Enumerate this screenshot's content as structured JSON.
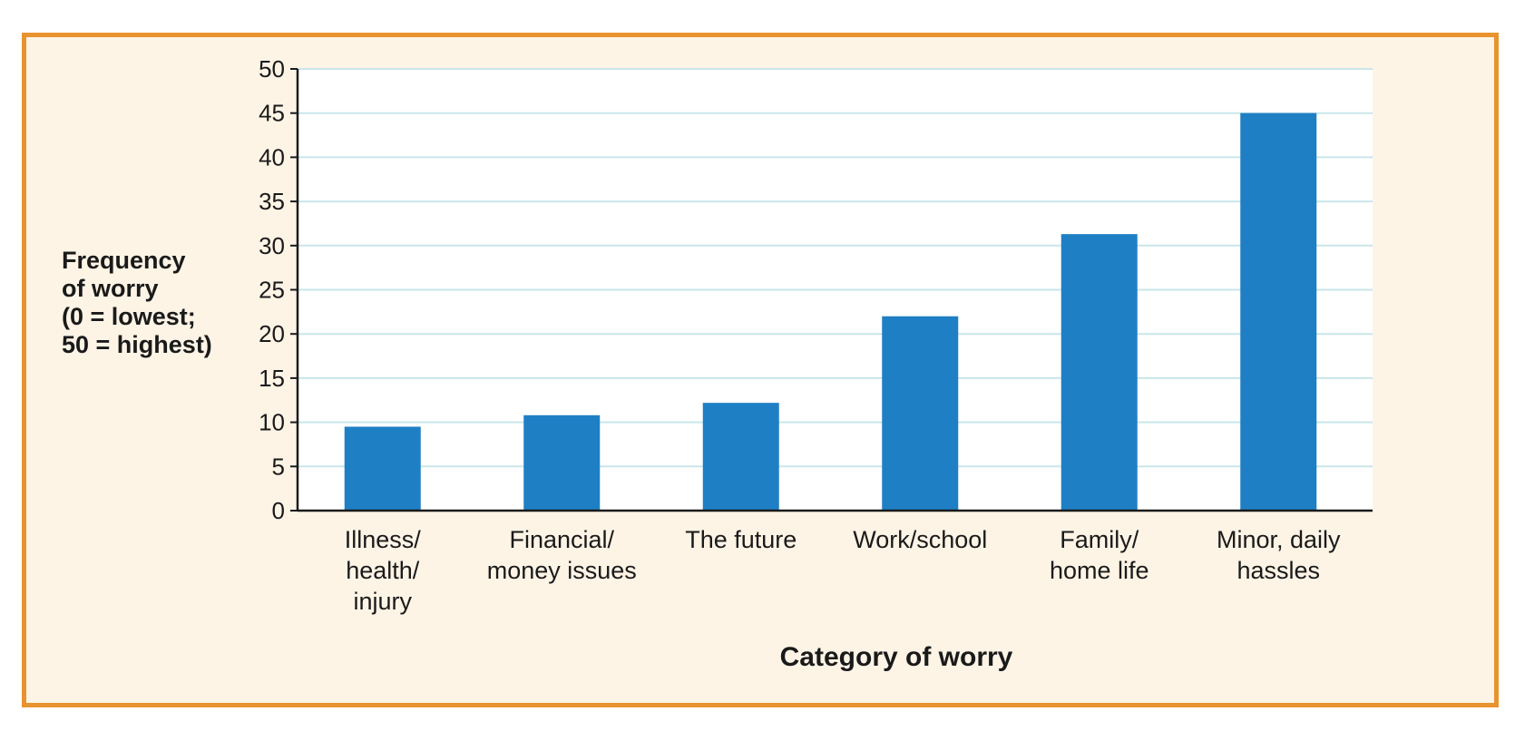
{
  "chart_data": {
    "type": "bar",
    "categories": [
      [
        "Illness/",
        "health/",
        "injury"
      ],
      [
        "Financial/",
        "money issues"
      ],
      [
        "The future"
      ],
      [
        "Work/school"
      ],
      [
        "Family/",
        "home life"
      ],
      [
        "Minor, daily",
        "hassles"
      ]
    ],
    "values": [
      9.5,
      10.8,
      12.2,
      22.0,
      31.3,
      45.0
    ],
    "xlabel": "Category of worry",
    "ylabel": [
      "Frequency",
      "of worry",
      "(0 = lowest;",
      "50 = highest)"
    ],
    "ylim": [
      0,
      50
    ],
    "yticks": [
      0,
      5,
      10,
      15,
      20,
      25,
      30,
      35,
      40,
      45,
      50
    ],
    "grid": true,
    "bar_color": "#1f7fc4",
    "grid_color": "#c9e6ea",
    "frame_color": "#e8932f",
    "frame_fill": "#fdf4e6",
    "plot_fill": "#ffffff"
  }
}
